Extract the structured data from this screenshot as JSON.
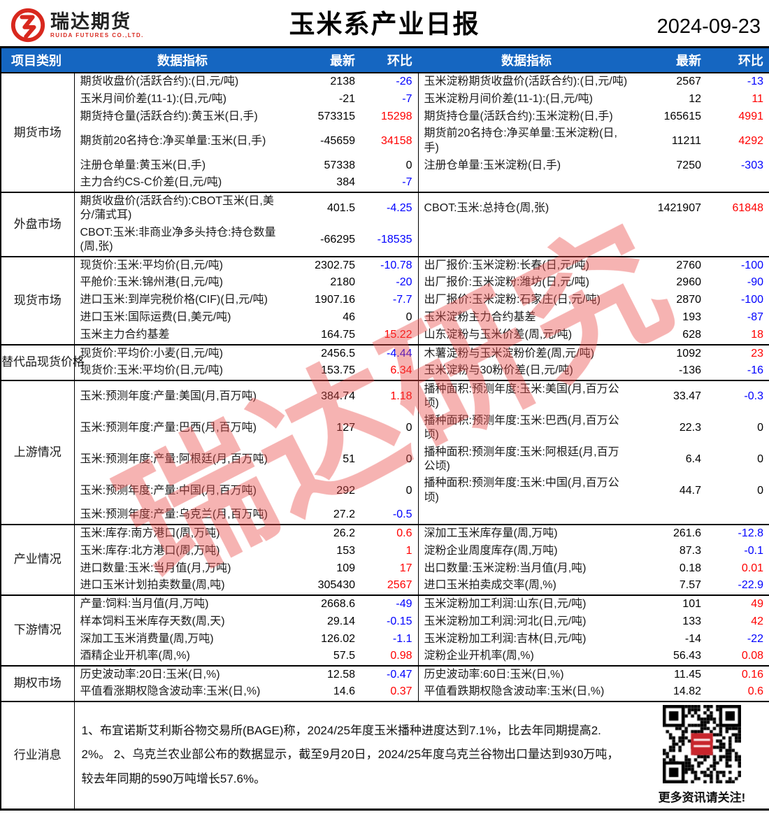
{
  "header": {
    "logo_text": "瑞达期货",
    "logo_subtext": "RUIDA FUTURES CO.,LTD.",
    "title": "玉米系产业日报",
    "date": "2024-09-23"
  },
  "table_header": {
    "category": "项目类别",
    "indicator_left": "数据指标",
    "latest_left": "最新",
    "chg_left": "环比",
    "indicator_right": "数据指标",
    "latest_right": "最新",
    "chg_right": "环比"
  },
  "watermark": "瑞达研究",
  "colors": {
    "header_blue": "#1566C1",
    "positive_change": "#FF0000",
    "negative_change": "#0000FF",
    "brand_red": "#D8281E"
  },
  "sections": [
    {
      "category": "期货市场",
      "rows": [
        {
          "l": [
            "期货收盘价(活跃合约):(日,元/吨)",
            "2138",
            "-26"
          ],
          "r": [
            "玉米淀粉期货收盘价(活跃合约):(日,元/吨)",
            "2567",
            "-13"
          ]
        },
        {
          "l": [
            "玉米月间价差(11-1):(日,元/吨)",
            "-21",
            "-7"
          ],
          "r": [
            "玉米淀粉月间价差(11-1):(日,元/吨)",
            "12",
            "11"
          ]
        },
        {
          "l": [
            "期货持仓量(活跃合约):黄玉米(日,手)",
            "573315",
            "15298"
          ],
          "r": [
            "期货持仓量(活跃合约):玉米淀粉(日,手)",
            "165615",
            "4991"
          ]
        },
        {
          "l": [
            "期货前20名持仓:净买单量:玉米(日,手)",
            "-45659",
            "34158"
          ],
          "r": [
            "期货前20名持仓:净买单量:玉米淀粉(日,手)",
            "11211",
            "4292"
          ]
        },
        {
          "l": [
            "注册仓单量:黄玉米(日,手)",
            "57338",
            "0"
          ],
          "r": [
            "注册仓单量:玉米淀粉(日,手)",
            "7250",
            "-303"
          ]
        },
        {
          "l": [
            "主力合约CS-C价差(日,元/吨)",
            "384",
            "-7"
          ],
          "r": [
            "",
            "",
            ""
          ]
        }
      ]
    },
    {
      "category": "外盘市场",
      "rows": [
        {
          "l": [
            "期货收盘价(活跃合约):CBOT玉米(日,美分/蒲式耳)",
            "401.5",
            "-4.25"
          ],
          "r": [
            "CBOT:玉米:总持仓(周,张)",
            "1421907",
            "61848"
          ]
        },
        {
          "l": [
            "CBOT:玉米:非商业净多头持仓:持仓数量(周,张)",
            "-66295",
            "-18535"
          ],
          "r": [
            "",
            "",
            ""
          ]
        }
      ]
    },
    {
      "category": "现货市场",
      "rows": [
        {
          "l": [
            "现货价:玉米:平均价(日,元/吨)",
            "2302.75",
            "-10.78"
          ],
          "r": [
            "出厂报价:玉米淀粉:长春(日,元/吨)",
            "2760",
            "-100"
          ]
        },
        {
          "l": [
            "平舱价:玉米:锦州港(日,元/吨)",
            "2180",
            "-20"
          ],
          "r": [
            "出厂报价:玉米淀粉:潍坊(日,元/吨)",
            "2960",
            "-90"
          ]
        },
        {
          "l": [
            "进口玉米:到岸完税价格(CIF)(日,元/吨)",
            "1907.16",
            "-7.7"
          ],
          "r": [
            "出厂报价:玉米淀粉:石家庄(日,元/吨)",
            "2870",
            "-100"
          ]
        },
        {
          "l": [
            "进口玉米:国际运费(日,美元/吨)",
            "46",
            "0"
          ],
          "r": [
            "玉米淀粉主力合约基差",
            "193",
            "-87"
          ]
        },
        {
          "l": [
            "玉米主力合约基差",
            "164.75",
            "15.22"
          ],
          "r": [
            "山东淀粉与玉米价差(周,元/吨)",
            "628",
            "18"
          ]
        }
      ]
    },
    {
      "category": "替代品现货价格",
      "rows": [
        {
          "l": [
            "现货价:平均价:小麦(日,元/吨)",
            "2456.5",
            "-4.44"
          ],
          "r": [
            "木薯淀粉与玉米淀粉价差(周,元/吨)",
            "1092",
            "23"
          ]
        },
        {
          "l": [
            "现货价:玉米:平均价(日,元/吨)",
            "153.75",
            "6.34"
          ],
          "r": [
            "玉米淀粉与30粉价差(日,元/吨)",
            "-136",
            "-16"
          ]
        }
      ]
    },
    {
      "category": "上游情况",
      "rows": [
        {
          "l": [
            "玉米:预测年度:产量:美国(月,百万吨)",
            "384.74",
            "1.18"
          ],
          "r": [
            "播种面积:预测年度:玉米:美国(月,百万公顷)",
            "33.47",
            "-0.3"
          ]
        },
        {
          "l": [
            "玉米:预测年度:产量:巴西(月,百万吨)",
            "127",
            "0"
          ],
          "r": [
            "播种面积:预测年度:玉米:巴西(月,百万公顷)",
            "22.3",
            "0"
          ]
        },
        {
          "l": [
            "玉米:预测年度:产量:阿根廷(月,百万吨)",
            "51",
            "0"
          ],
          "r": [
            "播种面积:预测年度:玉米:阿根廷(月,百万公顷)",
            "6.4",
            "0"
          ]
        },
        {
          "l": [
            "玉米:预测年度:产量:中国(月,百万吨)",
            "292",
            "0"
          ],
          "r": [
            "播种面积:预测年度:玉米:中国(月,百万公顷)",
            "44.7",
            "0"
          ]
        },
        {
          "l": [
            "玉米:预测年度:产量:乌克兰(月,百万吨)",
            "27.2",
            "-0.5"
          ],
          "r": [
            "",
            "",
            ""
          ]
        }
      ]
    },
    {
      "category": "产业情况",
      "rows": [
        {
          "l": [
            "玉米:库存:南方港口(周,万吨)",
            "26.2",
            "0.6"
          ],
          "r": [
            "深加工玉米库存量(周,万吨)",
            "261.6",
            "-12.8"
          ]
        },
        {
          "l": [
            "玉米:库存:北方港口(周,万吨)",
            "153",
            "1"
          ],
          "r": [
            "淀粉企业周度库存(周,万吨)",
            "87.3",
            "-0.1"
          ]
        },
        {
          "l": [
            "进口数量:玉米:当月值(月,万吨)",
            "109",
            "17"
          ],
          "r": [
            "出口数量:玉米淀粉:当月值(月,吨)",
            "0.18",
            "0.01"
          ]
        },
        {
          "l": [
            "进口玉米计划拍卖数量(周,吨)",
            "305430",
            "2567"
          ],
          "r": [
            "进口玉米拍卖成交率(周,%)",
            "7.57",
            "-22.9"
          ]
        }
      ]
    },
    {
      "category": "下游情况",
      "rows": [
        {
          "l": [
            "产量:饲料:当月值(月,万吨)",
            "2668.6",
            "-49"
          ],
          "r": [
            "玉米淀粉加工利润:山东(日,元/吨)",
            "101",
            "49"
          ]
        },
        {
          "l": [
            "样本饲料玉米库存天数(周,天)",
            "29.14",
            "-0.15"
          ],
          "r": [
            "玉米淀粉加工利润:河北(日,元/吨)",
            "133",
            "42"
          ]
        },
        {
          "l": [
            "深加工玉米消费量(周,万吨)",
            "126.02",
            "-1.1"
          ],
          "r": [
            "玉米淀粉加工利润:吉林(日,元/吨)",
            "-14",
            "-22"
          ]
        },
        {
          "l": [
            "酒精企业开机率(周,%)",
            "57.5",
            "0.98"
          ],
          "r": [
            "淀粉企业开机率(周,%)",
            "56.43",
            "0.08"
          ]
        }
      ]
    },
    {
      "category": "期权市场",
      "rows": [
        {
          "l": [
            "历史波动率:20日:玉米(日,%)",
            "12.58",
            "-0.47"
          ],
          "r": [
            "历史波动率:60日:玉米(日,%)",
            "11.45",
            "0.16"
          ]
        },
        {
          "l": [
            "平值看涨期权隐含波动率:玉米(日,%)",
            "14.6",
            "0.37"
          ],
          "r": [
            "平值看跌期权隐含波动率:玉米(日,%)",
            "14.82",
            "0.6"
          ]
        }
      ]
    }
  ],
  "news": {
    "category": "行业消息",
    "text": "1、布宜诺斯艾利斯谷物交易所(BAGE)称，2024/25年度玉米播种进度达到7.1%，比去年同期提高2.2%。 2、乌克兰农业部公布的数据显示，截至9月20日，2024/25年度乌克兰谷物出口量达到930万吨，较去年同期的590万吨增长57.6%。",
    "qr_caption": "更多资讯请关注!"
  }
}
